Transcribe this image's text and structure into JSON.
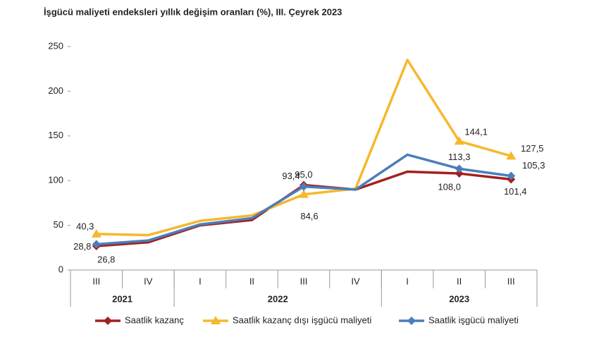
{
  "chart_data": {
    "type": "line",
    "title": "İşgücü maliyeti endeksleri yıllık değişim oranları (%), III. Çeyrek 2023",
    "categories": [
      "III",
      "IV",
      "I",
      "II",
      "III",
      "IV",
      "I",
      "II",
      "III"
    ],
    "year_groups": [
      {
        "label": "2021",
        "count": 2
      },
      {
        "label": "2022",
        "count": 4
      },
      {
        "label": "2023",
        "count": 3
      }
    ],
    "ylim": [
      0,
      250
    ],
    "yticks": [
      0,
      50,
      100,
      150,
      200,
      250
    ],
    "grid": false,
    "legend": "bottom",
    "series": [
      {
        "name": "Saatlik kazanç",
        "color": "#a3201f",
        "marker": "diamond",
        "values": [
          26.8,
          31,
          50,
          56,
          95.0,
          90,
          110,
          108.0,
          101.4
        ],
        "value_labels": [
          "26,8",
          null,
          null,
          null,
          "95,0",
          null,
          null,
          "108,0",
          "101,4"
        ]
      },
      {
        "name": "Saatlik kazanç dışı işgücü maliyeti",
        "color": "#f5b82e",
        "marker": "triangle",
        "values": [
          40.3,
          39,
          55,
          61,
          84.6,
          91,
          235,
          144.1,
          127.5
        ],
        "value_labels": [
          "40,3",
          null,
          null,
          null,
          "84,6",
          null,
          null,
          "144,1",
          "127,5"
        ]
      },
      {
        "name": "Saatlik işgücü maliyeti",
        "color": "#4a7ebb",
        "marker": "diamond",
        "values": [
          28.8,
          33,
          51,
          58,
          93.4,
          90,
          129,
          113.3,
          105.3
        ],
        "value_labels": [
          "28,8",
          null,
          null,
          null,
          "93,4",
          null,
          null,
          "113,3",
          "105,3"
        ]
      }
    ]
  }
}
